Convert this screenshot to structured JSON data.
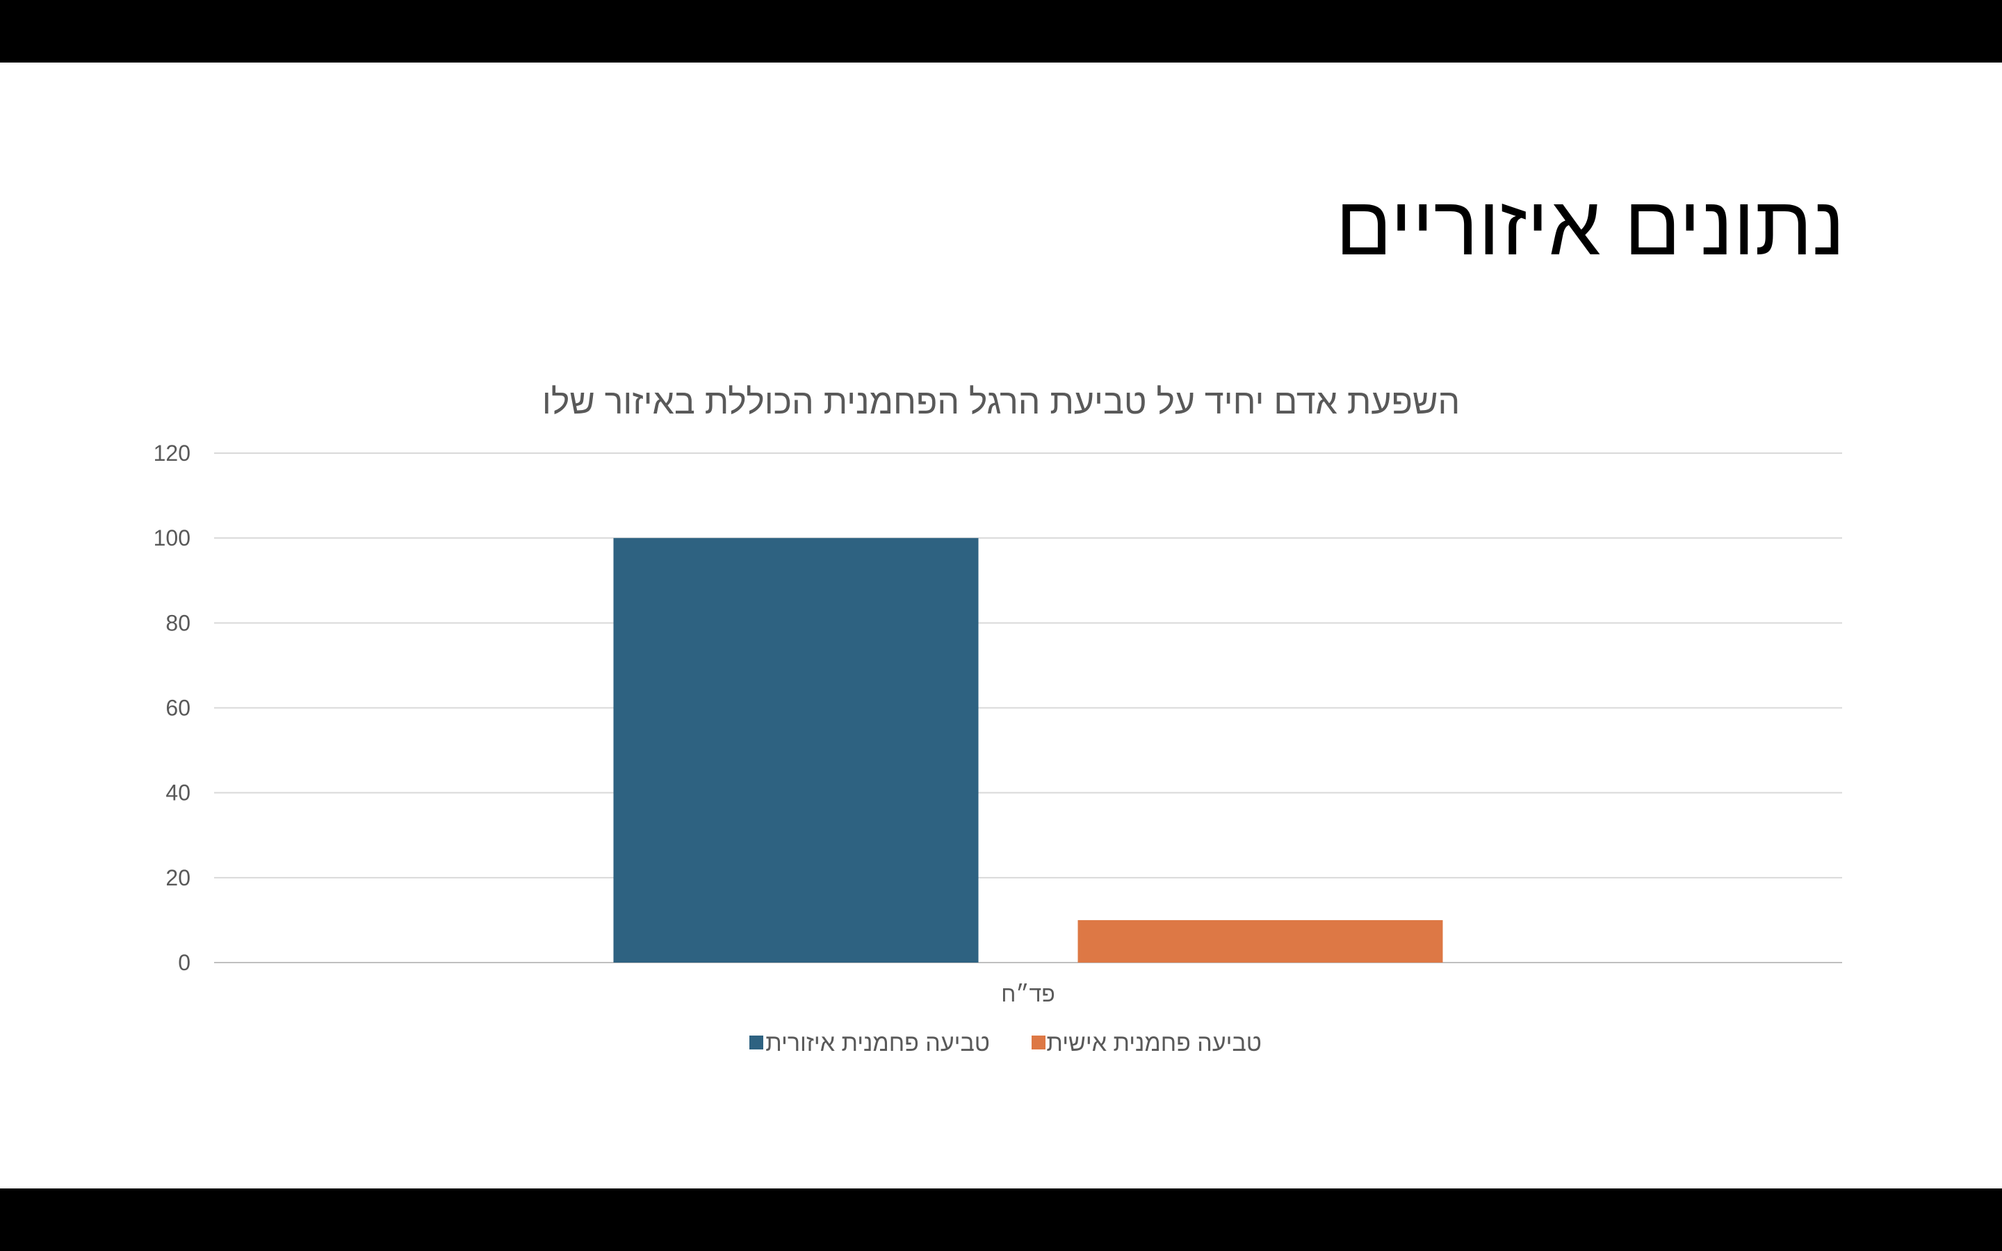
{
  "slide": {
    "title": "נתונים איזוריים"
  },
  "chart_data": {
    "type": "bar",
    "title": "השפעת אדם יחיד על טביעת הרגל הפחמנית הכוללת באיזור שלו",
    "categories": [
      "פד״ח"
    ],
    "series": [
      {
        "name": "טביעה פחמנית איזורית",
        "values": [
          100
        ],
        "color": "#2E6281"
      },
      {
        "name": "טביעה פחמנית אישית",
        "values": [
          10
        ],
        "color": "#DD7845"
      }
    ],
    "ylim": [
      0,
      120
    ],
    "yticks": [
      0,
      20,
      40,
      60,
      80,
      100,
      120
    ],
    "grid": true,
    "legend": "bottom"
  }
}
